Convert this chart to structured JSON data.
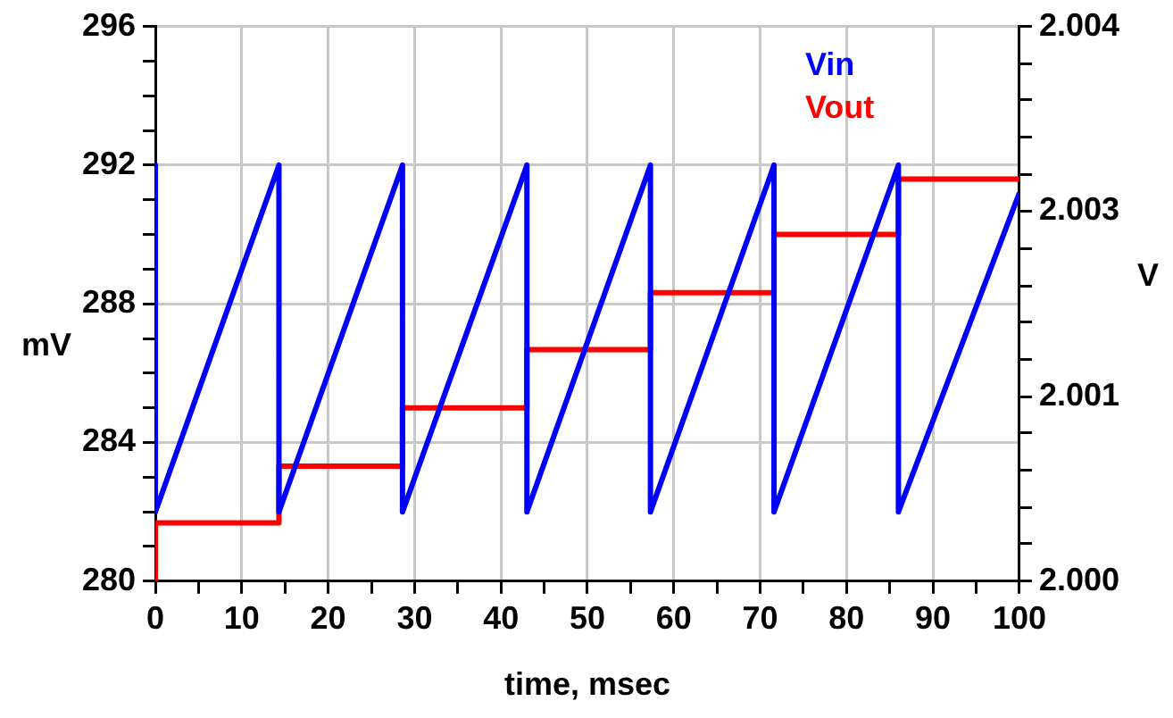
{
  "chart_data": {
    "type": "line",
    "xlabel": "time, msec",
    "ylabel": "mV",
    "y2label": "V",
    "xlim": [
      0,
      100
    ],
    "xticks": [
      0,
      {
        "value": 5,
        "label": null
      },
      10,
      {
        "value": 15,
        "label": null
      },
      20,
      {
        "value": 25,
        "label": null
      },
      30,
      {
        "value": 35,
        "label": null
      },
      40,
      {
        "value": 45,
        "label": null
      },
      50,
      {
        "value": 55,
        "label": null
      },
      60,
      {
        "value": 65,
        "label": null
      },
      70,
      {
        "value": 75,
        "label": null
      },
      80,
      {
        "value": 85,
        "label": null
      },
      90,
      {
        "value": 95,
        "label": null
      },
      100
    ],
    "ylim": [
      280,
      296
    ],
    "yticks": [
      280,
      {
        "value": 281,
        "label": null
      },
      {
        "value": 282,
        "label": null
      },
      {
        "value": 283,
        "label": null
      },
      284,
      {
        "value": 285,
        "label": null
      },
      {
        "value": 286,
        "label": null
      },
      {
        "value": 287,
        "label": null
      },
      288,
      {
        "value": 289,
        "label": null
      },
      {
        "value": 290,
        "label": null
      },
      {
        "value": 291,
        "label": null
      },
      292,
      {
        "value": 293,
        "label": null
      },
      {
        "value": 294,
        "label": null
      },
      {
        "value": 295,
        "label": null
      },
      296
    ],
    "y2lim": [
      2.0,
      2.004
    ],
    "y2ticks": [
      {
        "value": 2.0,
        "label": "2.000"
      },
      {
        "value": 2.00027,
        "label": null
      },
      {
        "value": 2.00053,
        "label": null
      },
      {
        "value": 2.0008,
        "label": null
      },
      {
        "value": 2.00107,
        "label": null
      },
      {
        "value": 2.00133,
        "label": "2.001"
      },
      {
        "value": 2.0016,
        "label": null
      },
      {
        "value": 2.00187,
        "label": null
      },
      {
        "value": 2.00213,
        "label": null
      },
      {
        "value": 2.0024,
        "label": null
      },
      {
        "value": 2.00267,
        "label": "2.003"
      },
      {
        "value": 2.00293,
        "label": null
      },
      {
        "value": 2.0032,
        "label": null
      },
      {
        "value": 2.00347,
        "label": null
      },
      {
        "value": 2.00373,
        "label": null
      },
      {
        "value": 2.004,
        "label": "2.004"
      }
    ],
    "grid": true,
    "legend": "top right",
    "marker": "none",
    "line_style": "solid",
    "series": [
      {
        "name": "Vin",
        "type": "line",
        "color": "#0000ff",
        "x": [
          0,
          0,
          14.3,
          14.3,
          28.6,
          28.6,
          43,
          43,
          57.3,
          57.3,
          71.6,
          71.6,
          86,
          86,
          100
        ],
        "values": [
          292,
          282,
          292,
          282,
          292,
          282,
          292,
          282,
          292,
          282,
          292,
          282,
          292,
          282,
          291.2
        ]
      },
      {
        "name": "Vout",
        "type": "step",
        "axis": "y2",
        "color": "#ff0000",
        "x": [
          0,
          0,
          14.3,
          28.6,
          43,
          57.3,
          71.6,
          86,
          100
        ],
        "values": [
          2.0,
          2.00042,
          2.00083,
          2.00125,
          2.00167,
          2.00208,
          2.0025,
          2.0029,
          2.0029
        ]
      }
    ]
  }
}
